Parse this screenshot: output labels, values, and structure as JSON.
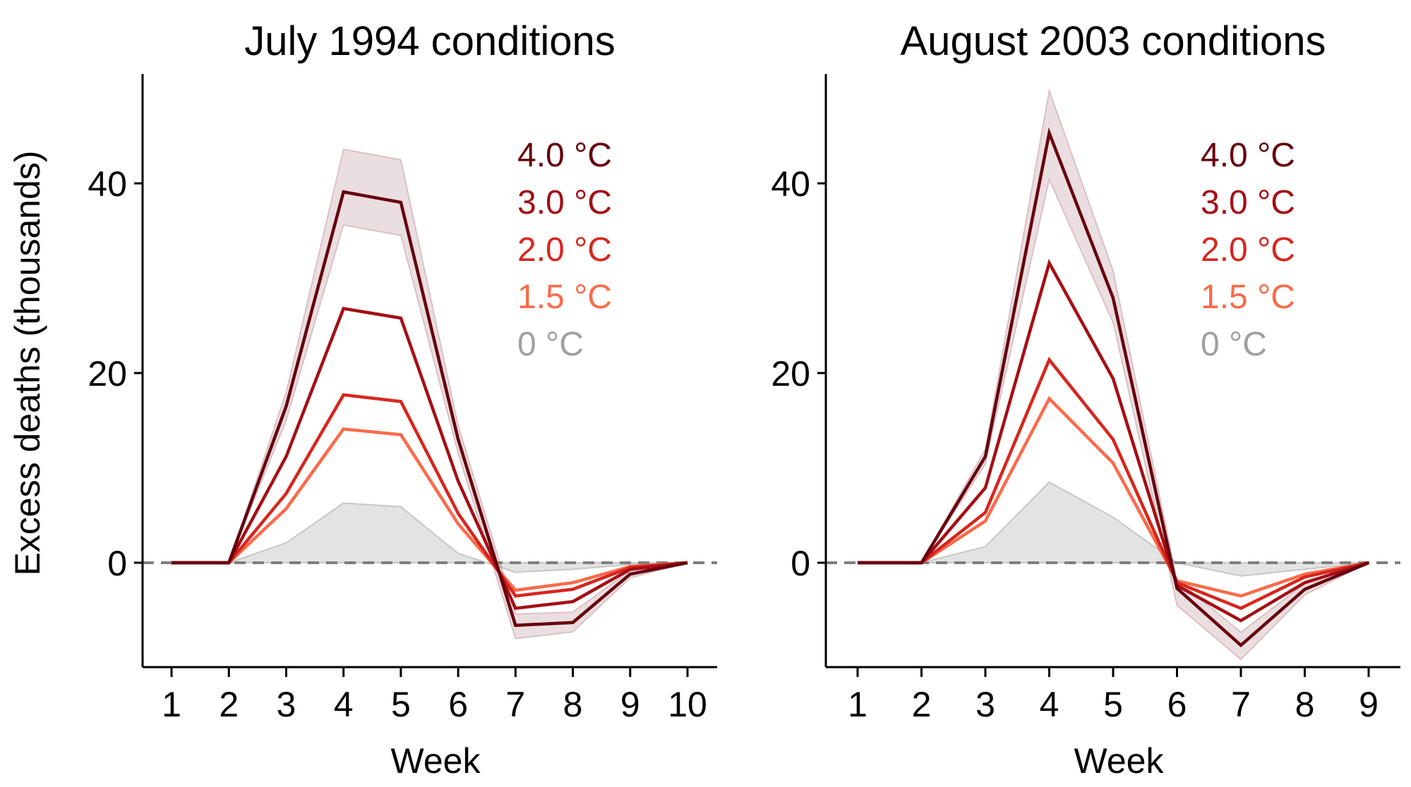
{
  "figure": {
    "ylabel": "Excess deaths (thousands)"
  },
  "chart_data": [
    {
      "type": "line",
      "title": "July 1994 conditions",
      "xlabel": "Week",
      "ylabel": "Excess deaths (thousands)",
      "x": [
        1,
        2,
        3,
        4,
        5,
        6,
        7,
        8,
        9,
        10
      ],
      "xticks": [
        "1",
        "2",
        "3",
        "4",
        "5",
        "6",
        "7",
        "8",
        "9",
        "10"
      ],
      "yticks": [
        0,
        20,
        40
      ],
      "ytick_labels": [
        "0",
        "20",
        "40"
      ],
      "xlim": [
        0.5,
        10.5
      ],
      "ylim": [
        -10.9,
        51.5
      ],
      "reference_line": {
        "y": 0,
        "style": "dashed",
        "color": "#7f7f7f"
      },
      "legend": {
        "placement": "top-right",
        "order": [
          "4.0 °C",
          "3.0 °C",
          "2.0 °C",
          "1.5 °C",
          "0 °C"
        ]
      },
      "series": [
        {
          "name": "4.0 °C",
          "color": "#67000d",
          "values": [
            0,
            0,
            16.5,
            39.1,
            38.0,
            13.0,
            -6.6,
            -6.3,
            -1.2,
            0
          ],
          "band": {
            "color": "#67000d",
            "upper": [
              0,
              0,
              18.0,
              43.6,
              42.5,
              14.5,
              -5.4,
              -5.2,
              -0.8,
              0
            ],
            "lower": [
              0,
              0,
              15.0,
              35.6,
              34.5,
              11.5,
              -8.0,
              -7.3,
              -1.6,
              0
            ]
          }
        },
        {
          "name": "3.0 °C",
          "color": "#a50f15",
          "values": [
            0,
            0,
            11.2,
            26.8,
            25.8,
            8.6,
            -4.8,
            -4.1,
            -0.7,
            0
          ]
        },
        {
          "name": "2.0 °C",
          "color": "#d7261e",
          "values": [
            0,
            0,
            7.3,
            17.7,
            17.0,
            5.2,
            -3.5,
            -2.8,
            -0.5,
            0
          ]
        },
        {
          "name": "1.5 °C",
          "color": "#fb6a4a",
          "values": [
            0,
            0,
            5.7,
            14.1,
            13.5,
            4.1,
            -2.9,
            -2.1,
            -0.4,
            0
          ]
        },
        {
          "name": "0 °C",
          "color": "#a0a0a0",
          "fill": "#e3e3e3",
          "area": true,
          "values": [
            0,
            0,
            2.1,
            6.3,
            5.9,
            1.0,
            -1.0,
            -0.7,
            -0.2,
            0
          ]
        }
      ]
    },
    {
      "type": "line",
      "title": "August 2003 conditions",
      "xlabel": "Week",
      "ylabel": "",
      "x": [
        1,
        2,
        3,
        4,
        5,
        6,
        7,
        8,
        9
      ],
      "xticks": [
        "1",
        "2",
        "3",
        "4",
        "5",
        "6",
        "7",
        "8",
        "9"
      ],
      "yticks": [
        0,
        20,
        40
      ],
      "ytick_labels": [
        "0",
        "20",
        "40"
      ],
      "xlim": [
        0.5,
        9.5
      ],
      "ylim": [
        -10.9,
        51.5
      ],
      "reference_line": {
        "y": 0,
        "style": "dashed",
        "color": "#7f7f7f"
      },
      "legend": {
        "placement": "top-right",
        "order": [
          "4.0 °C",
          "3.0 °C",
          "2.0 °C",
          "1.5 °C",
          "0 °C"
        ]
      },
      "series": [
        {
          "name": "4.0 °C",
          "color": "#67000d",
          "values": [
            0,
            0,
            11.2,
            45.3,
            27.9,
            -2.7,
            -8.7,
            -2.8,
            0
          ],
          "band": {
            "color": "#67000d",
            "upper": [
              0,
              0,
              12.0,
              49.8,
              30.8,
              -1.8,
              -7.3,
              -2.2,
              0
            ],
            "lower": [
              0,
              0,
              10.4,
              40.4,
              25.3,
              -4.5,
              -10.2,
              -3.4,
              0
            ]
          }
        },
        {
          "name": "3.0 °C",
          "color": "#a50f15",
          "values": [
            0,
            0,
            7.9,
            31.6,
            19.4,
            -2.4,
            -6.1,
            -2.1,
            0
          ]
        },
        {
          "name": "2.0 °C",
          "color": "#d7261e",
          "values": [
            0,
            0,
            5.3,
            21.4,
            13.0,
            -2.1,
            -4.8,
            -1.5,
            0
          ]
        },
        {
          "name": "1.5 °C",
          "color": "#fb6a4a",
          "values": [
            0,
            0,
            4.4,
            17.3,
            10.5,
            -1.9,
            -3.5,
            -1.2,
            0
          ]
        },
        {
          "name": "0 °C",
          "color": "#a0a0a0",
          "fill": "#e3e3e3",
          "area": true,
          "values": [
            0,
            0,
            1.7,
            8.5,
            4.8,
            0.0,
            -1.4,
            -0.7,
            0
          ]
        }
      ]
    }
  ]
}
